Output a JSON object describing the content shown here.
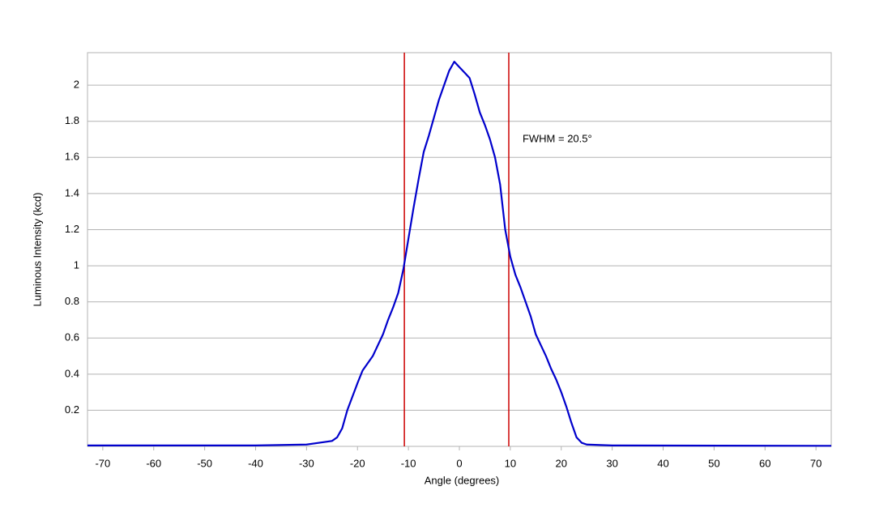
{
  "chart_data": {
    "type": "line",
    "x_label": "Angle (degrees)",
    "y_label": "Luminous Intensity (kcd)",
    "xlim": [
      -73,
      73
    ],
    "ylim": [
      0,
      2.18
    ],
    "xticks": [
      -70,
      -60,
      -50,
      -40,
      -30,
      -20,
      -10,
      0,
      10,
      20,
      30,
      40,
      50,
      60,
      70
    ],
    "yticks": [
      0.2,
      0.4,
      0.6,
      0.8,
      1.0,
      1.2,
      1.4,
      1.6,
      1.8,
      2.0
    ],
    "grid": true,
    "x": [
      -73,
      -40,
      -30,
      -25,
      -24,
      -23,
      -22,
      -20,
      -19,
      -17,
      -15,
      -14,
      -13,
      -12,
      -11,
      -10,
      -9,
      -8,
      -7,
      -6,
      -5,
      -4,
      -3,
      -2,
      -1,
      0,
      1,
      2,
      3,
      4,
      5,
      6,
      7,
      8,
      9,
      10,
      11,
      12,
      13,
      14,
      15,
      16,
      17,
      18,
      19,
      20,
      21,
      22,
      23,
      24,
      25,
      30,
      73
    ],
    "series": [
      {
        "color": "#0000cc",
        "values": [
          0.005,
          0.005,
          0.01,
          0.03,
          0.05,
          0.1,
          0.2,
          0.35,
          0.42,
          0.5,
          0.62,
          0.7,
          0.77,
          0.85,
          0.98,
          1.15,
          1.32,
          1.48,
          1.63,
          1.72,
          1.82,
          1.92,
          2.0,
          2.08,
          2.13,
          2.1,
          2.07,
          2.04,
          1.95,
          1.85,
          1.78,
          1.7,
          1.6,
          1.45,
          1.2,
          1.05,
          0.95,
          0.88,
          0.8,
          0.72,
          0.62,
          0.56,
          0.5,
          0.43,
          0.37,
          0.3,
          0.22,
          0.13,
          0.05,
          0.02,
          0.01,
          0.005,
          0.003
        ]
      }
    ],
    "vlines": {
      "color": "#cc0000",
      "values": [
        -10.8,
        9.7
      ]
    },
    "annotation": {
      "text": "FWHM = 20.5°",
      "x": 12.4,
      "y": 1.7
    }
  }
}
